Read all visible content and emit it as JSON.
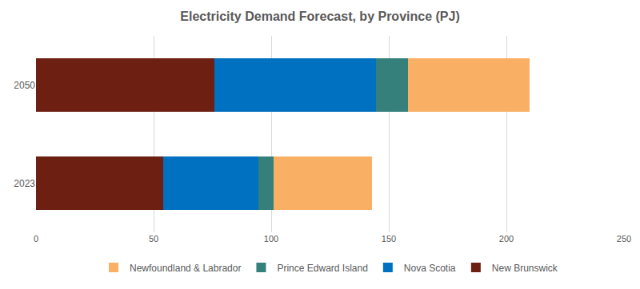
{
  "chart_data": {
    "type": "bar",
    "title": "Electricity Demand Forecast, by Province (PJ)",
    "orientation": "horizontal",
    "stacked": true,
    "grid": true,
    "legend": "bottom",
    "categories": [
      "2023",
      "2050"
    ],
    "series": [
      {
        "name": "New Brunswick",
        "color": "#6d1f12",
        "values": [
          54,
          76
        ]
      },
      {
        "name": "Nova Scotia",
        "color": "#0070c0",
        "values": [
          40.5,
          68.5
        ]
      },
      {
        "name": "Prince Edward Island",
        "color": "#35807a",
        "values": [
          6.5,
          13.5
        ]
      },
      {
        "name": "Newfoundland & Labrador",
        "color": "#f9b064",
        "values": [
          42,
          52
        ]
      }
    ],
    "xlim": [
      0,
      250
    ],
    "xticks": [
      0,
      50,
      100,
      150,
      200,
      250
    ]
  }
}
